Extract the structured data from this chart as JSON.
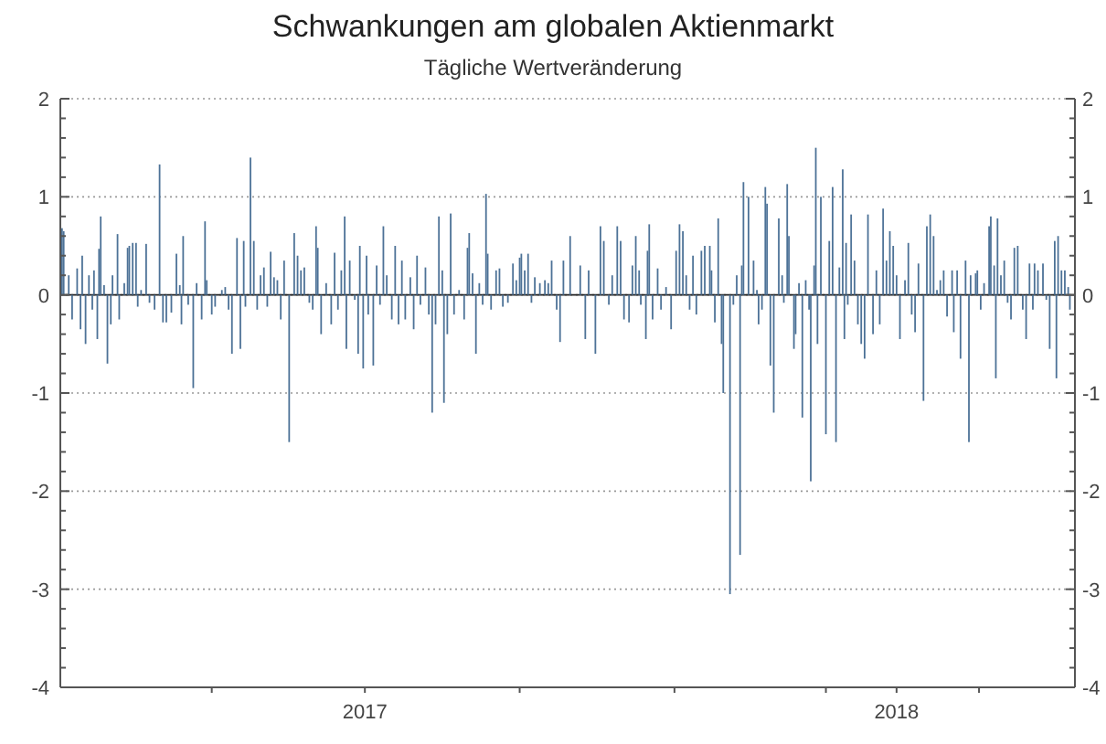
{
  "chart_data": {
    "type": "bar",
    "title": "Schwankungen am globalen Aktienmarkt",
    "subtitle": "Tägliche Wertveränderung",
    "x": [
      "2017-01-02",
      "2017-01-03",
      "2017-01-06",
      "2017-01-08",
      "2017-01-11",
      "2017-01-13",
      "2017-01-14",
      "2017-01-16",
      "2017-01-18",
      "2017-01-20",
      "2017-01-21",
      "2017-01-23",
      "2017-01-24",
      "2017-01-25",
      "2017-01-27",
      "2017-01-29",
      "2017-01-31",
      "2017-02-01",
      "2017-02-04",
      "2017-02-05",
      "2017-02-08",
      "2017-02-10",
      "2017-02-11",
      "2017-02-13",
      "2017-02-15",
      "2017-02-16",
      "2017-02-18",
      "2017-02-21",
      "2017-02-23",
      "2017-02-26",
      "2017-03-01",
      "2017-03-03",
      "2017-03-05",
      "2017-03-08",
      "2017-03-11",
      "2017-03-13",
      "2017-03-14",
      "2017-03-15",
      "2017-03-18",
      "2017-03-21",
      "2017-03-23",
      "2017-03-26",
      "2017-03-28",
      "2017-03-29",
      "2017-04-01",
      "2017-04-03",
      "2017-04-07",
      "2017-04-09",
      "2017-04-11",
      "2017-04-13",
      "2017-04-16",
      "2017-04-18",
      "2017-04-20",
      "2017-04-21",
      "2017-04-24",
      "2017-04-26",
      "2017-04-28",
      "2017-04-30",
      "2017-05-02",
      "2017-05-04",
      "2017-05-06",
      "2017-05-08",
      "2017-05-10",
      "2017-05-12",
      "2017-05-14",
      "2017-05-17",
      "2017-05-20",
      "2017-05-22",
      "2017-05-24",
      "2017-05-26",
      "2017-05-29",
      "2017-05-31",
      "2017-06-02",
      "2017-06-03",
      "2017-06-05",
      "2017-06-08",
      "2017-06-11",
      "2017-06-13",
      "2017-06-15",
      "2017-06-17",
      "2017-06-19",
      "2017-06-20",
      "2017-06-22",
      "2017-06-25",
      "2017-06-27",
      "2017-06-28",
      "2017-06-30",
      "2017-07-02",
      "2017-07-03",
      "2017-07-06",
      "2017-07-08",
      "2017-07-10",
      "2017-07-12",
      "2017-07-14",
      "2017-07-17",
      "2017-07-19",
      "2017-07-21",
      "2017-07-23",
      "2017-07-25",
      "2017-07-28",
      "2017-07-30",
      "2017-08-01",
      "2017-08-03",
      "2017-08-06",
      "2017-08-08",
      "2017-08-10",
      "2017-08-12",
      "2017-08-14",
      "2017-08-16",
      "2017-08-17",
      "2017-08-19",
      "2017-08-21",
      "2017-08-23",
      "2017-08-26",
      "2017-08-29",
      "2017-08-31",
      "2017-09-01",
      "2017-09-03",
      "2017-09-05",
      "2017-09-07",
      "2017-09-09",
      "2017-09-11",
      "2017-09-12",
      "2017-09-14",
      "2017-09-17",
      "2017-09-19",
      "2017-09-21",
      "2017-09-24",
      "2017-09-27",
      "2017-09-29",
      "2017-10-01",
      "2017-10-02",
      "2017-10-04",
      "2017-10-06",
      "2017-10-08",
      "2017-10-10",
      "2017-10-13",
      "2017-10-16",
      "2017-10-18",
      "2017-10-20",
      "2017-10-23",
      "2017-10-25",
      "2017-10-27",
      "2017-10-31",
      "2017-11-06",
      "2017-11-09",
      "2017-11-11",
      "2017-11-15",
      "2017-11-18",
      "2017-11-20",
      "2017-11-23",
      "2017-11-25",
      "2017-11-28",
      "2017-11-30",
      "2017-12-02",
      "2017-12-05",
      "2017-12-07",
      "2017-12-09",
      "2017-12-11",
      "2017-12-12",
      "2017-12-15",
      "2017-12-16",
      "2017-12-17",
      "2017-12-19",
      "2017-12-22",
      "2017-12-24",
      "2017-12-27",
      "2017-12-30",
      "2018-01-02",
      "2018-01-04",
      "2018-01-06",
      "2018-01-08",
      "2018-01-10",
      "2018-01-12",
      "2018-01-14",
      "2018-01-17",
      "2018-01-19",
      "2018-01-22",
      "2018-01-23",
      "2018-01-25",
      "2018-01-27",
      "2018-01-29",
      "2018-01-30",
      "2018-02-03",
      "2018-02-05",
      "2018-02-07",
      "2018-02-09",
      "2018-02-10",
      "2018-02-11",
      "2018-02-14",
      "2018-02-17",
      "2018-02-19",
      "2018-02-20",
      "2018-02-22",
      "2018-02-24",
      "2018-02-25",
      "2018-02-27",
      "2018-03-01",
      "2018-03-04",
      "2018-03-06",
      "2018-03-07",
      "2018-03-09",
      "2018-03-10",
      "2018-03-13",
      "2018-03-14",
      "2018-03-16",
      "2018-03-18",
      "2018-03-20",
      "2018-03-22",
      "2018-03-23",
      "2018-03-25",
      "2018-03-26",
      "2018-03-27",
      "2018-03-29",
      "2018-04-01",
      "2018-04-03",
      "2018-04-05",
      "2018-04-07",
      "2018-04-09",
      "2018-04-11",
      "2018-04-12",
      "2018-04-13",
      "2018-04-14",
      "2018-04-16",
      "2018-04-18",
      "2018-04-20",
      "2018-04-22",
      "2018-04-24",
      "2018-04-26",
      "2018-04-29",
      "2018-05-01",
      "2018-05-03",
      "2018-05-05",
      "2018-05-07",
      "2018-05-09",
      "2018-05-11",
      "2018-05-13",
      "2018-05-15",
      "2018-05-18",
      "2018-05-20",
      "2018-05-22",
      "2018-05-24",
      "2018-05-26",
      "2018-05-29",
      "2018-05-31",
      "2018-06-02",
      "2018-06-04",
      "2018-06-06",
      "2018-06-08",
      "2018-06-10",
      "2018-06-12",
      "2018-06-15",
      "2018-06-16",
      "2018-06-18",
      "2018-06-20",
      "2018-06-23",
      "2018-06-25",
      "2018-06-26",
      "2018-06-29",
      "2018-06-30",
      "2018-07-02",
      "2018-07-04",
      "2018-07-07",
      "2018-07-08",
      "2018-07-10",
      "2018-07-11",
      "2018-07-12",
      "2018-07-14",
      "2018-07-16",
      "2018-07-18",
      "2018-07-20",
      "2018-07-22",
      "2018-07-24",
      "2018-07-27",
      "2018-07-29",
      "2018-07-31",
      "2018-08-02",
      "2018-08-03",
      "2018-08-05",
      "2018-08-08",
      "2018-08-10",
      "2018-08-12",
      "2018-08-15",
      "2018-08-16",
      "2018-08-17",
      "2018-08-19",
      "2018-08-21",
      "2018-08-23",
      "2018-08-24"
    ],
    "values": [
      0.68,
      0.65,
      0.2,
      -0.25,
      0.27,
      -0.35,
      0.4,
      -0.5,
      0.2,
      -0.15,
      0.25,
      -0.45,
      0.47,
      0.8,
      0.1,
      -0.7,
      -0.3,
      0.2,
      0.62,
      -0.25,
      0.12,
      0.48,
      0.5,
      0.53,
      0.53,
      -0.12,
      0.05,
      0.52,
      -0.08,
      -0.15,
      1.33,
      -0.28,
      -0.28,
      -0.18,
      0.42,
      0.1,
      -0.3,
      0.6,
      -0.1,
      -0.95,
      0.12,
      -0.25,
      0.75,
      0.15,
      -0.2,
      -0.12,
      0.05,
      0.08,
      -0.15,
      -0.6,
      0.58,
      -0.55,
      0.55,
      -0.12,
      1.4,
      0.55,
      -0.15,
      0.2,
      0.28,
      -0.12,
      0.44,
      0.18,
      0.15,
      -0.25,
      0.35,
      -1.5,
      0.63,
      0.4,
      0.25,
      0.28,
      -0.08,
      -0.15,
      0.7,
      0.48,
      -0.4,
      0.12,
      -0.3,
      0.43,
      -0.15,
      0.25,
      0.8,
      -0.55,
      0.35,
      -0.05,
      -0.6,
      0.5,
      -0.75,
      0.4,
      -0.2,
      -0.72,
      0.3,
      -0.1,
      0.7,
      0.2,
      -0.25,
      0.5,
      -0.3,
      0.35,
      -0.25,
      0.18,
      -0.35,
      0.4,
      -0.1,
      0.28,
      -0.2,
      -1.2,
      -0.3,
      0.8,
      0.25,
      -1.1,
      -0.4,
      0.83,
      -0.2,
      0.05,
      -0.25,
      0.48,
      0.63,
      0.22,
      -0.6,
      0.12,
      -0.1,
      1.03,
      0.42,
      -0.15,
      0.25,
      0.27,
      -0.12,
      -0.08,
      0.32,
      0.15,
      0.38,
      0.42,
      0.25,
      0.42,
      -0.08,
      0.18,
      0.12,
      0.15,
      0.12,
      0.35,
      -0.15,
      -0.48,
      0.35,
      0.6,
      0.3,
      -0.45,
      0.25,
      -0.6,
      0.7,
      0.55,
      -0.1,
      0.2,
      0.7,
      0.55,
      -0.25,
      -0.28,
      0.3,
      0.6,
      0.25,
      -0.1,
      -0.45,
      0.45,
      0.72,
      -0.25,
      0.27,
      -0.15,
      0.08,
      -0.35,
      0.45,
      0.72,
      0.65,
      0.2,
      -0.15,
      0.4,
      -0.2,
      0.45,
      0.5,
      0.5,
      0.25,
      -0.28,
      0.78,
      -0.5,
      -1.0,
      -3.05,
      -0.1,
      0.2,
      -2.65,
      0.3,
      1.15,
      1.0,
      0.35,
      0.05,
      -0.3,
      -0.15,
      1.1,
      0.93,
      -0.72,
      -1.2,
      0.78,
      0.2,
      -0.08,
      1.13,
      0.6,
      -0.55,
      -0.4,
      0.12,
      -1.25,
      0.15,
      -0.15,
      -1.9,
      0.3,
      1.5,
      -0.5,
      1.0,
      -1.42,
      0.55,
      1.1,
      -1.5,
      0.28,
      1.28,
      -0.45,
      0.53,
      -0.1,
      0.82,
      0.35,
      -0.3,
      -0.5,
      -0.65,
      0.82,
      -0.4,
      0.25,
      -0.3,
      0.88,
      0.35,
      0.65,
      0.5,
      0.2,
      -0.45,
      0.15,
      0.53,
      -0.2,
      -0.38,
      0.32,
      -1.08,
      0.7,
      0.82,
      0.6,
      0.05,
      0.15,
      0.25,
      -0.22,
      0.25,
      -0.38,
      0.25,
      -0.65,
      0.35,
      -1.5,
      0.2,
      0.22,
      0.25,
      -0.15,
      0.12,
      0.7,
      0.8,
      0.3,
      -0.85,
      0.78,
      0.2,
      0.35,
      -0.08,
      -0.25,
      0.48,
      0.5,
      -0.15,
      -0.45,
      0.32,
      -0.15,
      0.32,
      0.25,
      0.32,
      -0.05,
      -0.55,
      0.55,
      -0.85,
      0.6,
      0.25,
      0.25,
      0.08,
      -0.15
    ],
    "color": "#4d7297",
    "xlim": [
      "2017-01-01",
      "2018-08-27"
    ],
    "xticks": [
      {
        "value": "2017-04-01",
        "label": null
      },
      {
        "value": "2017-07-01",
        "label": "2017"
      },
      {
        "value": "2017-10-01",
        "label": null
      },
      {
        "value": "2018-01-01",
        "label": null
      },
      {
        "value": "2018-04-01",
        "label": null
      },
      {
        "value": "2018-05-13",
        "label": "2018"
      },
      {
        "value": "2018-07-01",
        "label": null
      }
    ],
    "ylim": [
      -4,
      2
    ],
    "yticks": [
      -4,
      {
        "value": -3.8,
        "label": null
      },
      {
        "value": -3.6,
        "label": null
      },
      {
        "value": -3.4,
        "label": null
      },
      {
        "value": -3.2,
        "label": null
      },
      -3,
      {
        "value": -2.8,
        "label": null
      },
      {
        "value": -2.6,
        "label": null
      },
      {
        "value": -2.4,
        "label": null
      },
      {
        "value": -2.2,
        "label": null
      },
      -2,
      {
        "value": -1.8,
        "label": null
      },
      {
        "value": -1.6,
        "label": null
      },
      {
        "value": -1.4,
        "label": null
      },
      {
        "value": -1.2,
        "label": null
      },
      -1,
      {
        "value": -0.8,
        "label": null
      },
      {
        "value": -0.6,
        "label": null
      },
      {
        "value": -0.4,
        "label": null
      },
      {
        "value": -0.2,
        "label": null
      },
      0,
      {
        "value": 0.2,
        "label": null
      },
      {
        "value": 0.4,
        "label": null
      },
      {
        "value": 0.6,
        "label": null
      },
      {
        "value": 0.8,
        "label": null
      },
      1,
      {
        "value": 1.2,
        "label": null
      },
      {
        "value": 1.4,
        "label": null
      },
      {
        "value": 1.6,
        "label": null
      },
      {
        "value": 1.8,
        "label": null
      },
      2
    ],
    "y2lim": [
      -4,
      2
    ],
    "y2ticks": [
      -4,
      {
        "value": -3.8,
        "label": null
      },
      {
        "value": -3.6,
        "label": null
      },
      {
        "value": -3.4,
        "label": null
      },
      {
        "value": -3.2,
        "label": null
      },
      -3,
      {
        "value": -2.8,
        "label": null
      },
      {
        "value": -2.6,
        "label": null
      },
      {
        "value": -2.4,
        "label": null
      },
      {
        "value": -2.2,
        "label": null
      },
      -2,
      {
        "value": -1.8,
        "label": null
      },
      {
        "value": -1.6,
        "label": null
      },
      {
        "value": -1.4,
        "label": null
      },
      {
        "value": -1.2,
        "label": null
      },
      -1,
      {
        "value": -0.8,
        "label": null
      },
      {
        "value": -0.6,
        "label": null
      },
      {
        "value": -0.4,
        "label": null
      },
      {
        "value": -0.2,
        "label": null
      },
      0,
      {
        "value": 0.2,
        "label": null
      },
      {
        "value": 0.4,
        "label": null
      },
      {
        "value": 0.6,
        "label": null
      },
      {
        "value": 0.8,
        "label": null
      },
      1,
      {
        "value": 1.2,
        "label": null
      },
      {
        "value": 1.4,
        "label": null
      },
      {
        "value": 1.6,
        "label": null
      },
      {
        "value": 1.8,
        "label": null
      },
      2
    ],
    "grid": "y"
  }
}
